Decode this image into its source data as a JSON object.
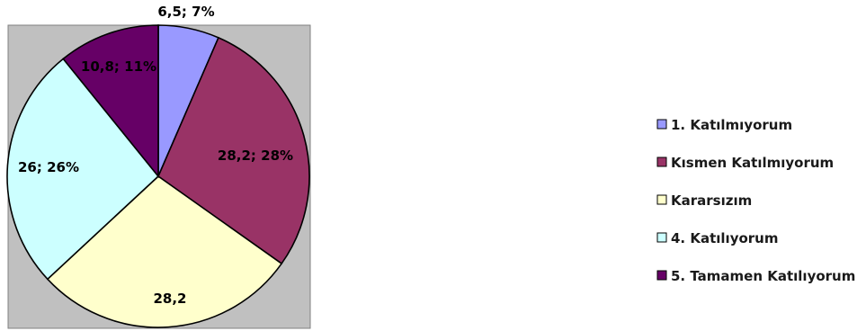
{
  "chart_data": {
    "type": "pie",
    "title": "",
    "categories": [
      "1. Katılmıyorum",
      "Kısmen Katılmıyorum",
      "Kararsızım",
      "4. Katılıyorum",
      "5. Tamamen Katılıyorum"
    ],
    "values": [
      6.5,
      28.2,
      28.2,
      26,
      10.8
    ],
    "data_labels": [
      "6,5; 7%",
      "28,2; 28%",
      "28,2",
      "26; 26%",
      "10,8; 11%"
    ],
    "colors": [
      "#9999ff",
      "#993366",
      "#ffffcc",
      "#ccffff",
      "#660066"
    ],
    "legend_position": "right",
    "plot_background": "#c0c0c0"
  }
}
